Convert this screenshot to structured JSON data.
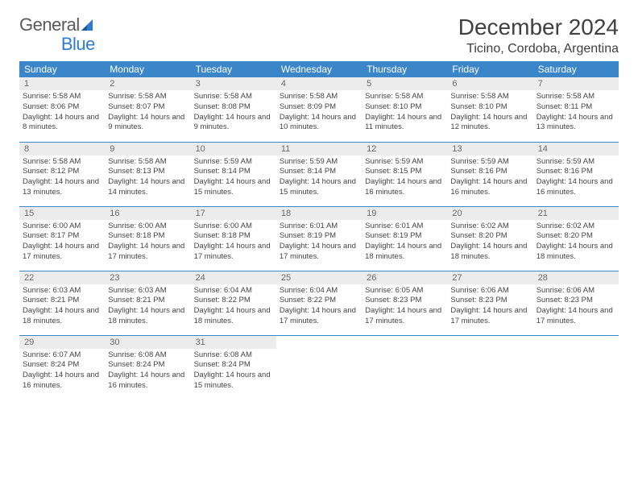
{
  "logo": {
    "text1": "General",
    "text2": "Blue"
  },
  "title": "December 2024",
  "subtitle": "Ticino, Cordoba, Argentina",
  "colors": {
    "header_bg": "#3b86c8",
    "header_text": "#ffffff",
    "daynum_bg": "#ececec",
    "daynum_text": "#6a6a6a",
    "body_text": "#444444",
    "divider": "#3b86c8",
    "title_text": "#404040",
    "logo_gray": "#5a5a5a",
    "logo_blue": "#2d7cd1"
  },
  "weekdays": [
    "Sunday",
    "Monday",
    "Tuesday",
    "Wednesday",
    "Thursday",
    "Friday",
    "Saturday"
  ],
  "days": [
    {
      "n": 1,
      "sr": "5:58 AM",
      "ss": "8:06 PM",
      "dl": "14 hours and 8 minutes."
    },
    {
      "n": 2,
      "sr": "5:58 AM",
      "ss": "8:07 PM",
      "dl": "14 hours and 9 minutes."
    },
    {
      "n": 3,
      "sr": "5:58 AM",
      "ss": "8:08 PM",
      "dl": "14 hours and 9 minutes."
    },
    {
      "n": 4,
      "sr": "5:58 AM",
      "ss": "8:09 PM",
      "dl": "14 hours and 10 minutes."
    },
    {
      "n": 5,
      "sr": "5:58 AM",
      "ss": "8:10 PM",
      "dl": "14 hours and 11 minutes."
    },
    {
      "n": 6,
      "sr": "5:58 AM",
      "ss": "8:10 PM",
      "dl": "14 hours and 12 minutes."
    },
    {
      "n": 7,
      "sr": "5:58 AM",
      "ss": "8:11 PM",
      "dl": "14 hours and 13 minutes."
    },
    {
      "n": 8,
      "sr": "5:58 AM",
      "ss": "8:12 PM",
      "dl": "14 hours and 13 minutes."
    },
    {
      "n": 9,
      "sr": "5:58 AM",
      "ss": "8:13 PM",
      "dl": "14 hours and 14 minutes."
    },
    {
      "n": 10,
      "sr": "5:59 AM",
      "ss": "8:14 PM",
      "dl": "14 hours and 15 minutes."
    },
    {
      "n": 11,
      "sr": "5:59 AM",
      "ss": "8:14 PM",
      "dl": "14 hours and 15 minutes."
    },
    {
      "n": 12,
      "sr": "5:59 AM",
      "ss": "8:15 PM",
      "dl": "14 hours and 16 minutes."
    },
    {
      "n": 13,
      "sr": "5:59 AM",
      "ss": "8:16 PM",
      "dl": "14 hours and 16 minutes."
    },
    {
      "n": 14,
      "sr": "5:59 AM",
      "ss": "8:16 PM",
      "dl": "14 hours and 16 minutes."
    },
    {
      "n": 15,
      "sr": "6:00 AM",
      "ss": "8:17 PM",
      "dl": "14 hours and 17 minutes."
    },
    {
      "n": 16,
      "sr": "6:00 AM",
      "ss": "8:18 PM",
      "dl": "14 hours and 17 minutes."
    },
    {
      "n": 17,
      "sr": "6:00 AM",
      "ss": "8:18 PM",
      "dl": "14 hours and 17 minutes."
    },
    {
      "n": 18,
      "sr": "6:01 AM",
      "ss": "8:19 PM",
      "dl": "14 hours and 17 minutes."
    },
    {
      "n": 19,
      "sr": "6:01 AM",
      "ss": "8:19 PM",
      "dl": "14 hours and 18 minutes."
    },
    {
      "n": 20,
      "sr": "6:02 AM",
      "ss": "8:20 PM",
      "dl": "14 hours and 18 minutes."
    },
    {
      "n": 21,
      "sr": "6:02 AM",
      "ss": "8:20 PM",
      "dl": "14 hours and 18 minutes."
    },
    {
      "n": 22,
      "sr": "6:03 AM",
      "ss": "8:21 PM",
      "dl": "14 hours and 18 minutes."
    },
    {
      "n": 23,
      "sr": "6:03 AM",
      "ss": "8:21 PM",
      "dl": "14 hours and 18 minutes."
    },
    {
      "n": 24,
      "sr": "6:04 AM",
      "ss": "8:22 PM",
      "dl": "14 hours and 18 minutes."
    },
    {
      "n": 25,
      "sr": "6:04 AM",
      "ss": "8:22 PM",
      "dl": "14 hours and 17 minutes."
    },
    {
      "n": 26,
      "sr": "6:05 AM",
      "ss": "8:23 PM",
      "dl": "14 hours and 17 minutes."
    },
    {
      "n": 27,
      "sr": "6:06 AM",
      "ss": "8:23 PM",
      "dl": "14 hours and 17 minutes."
    },
    {
      "n": 28,
      "sr": "6:06 AM",
      "ss": "8:23 PM",
      "dl": "14 hours and 17 minutes."
    },
    {
      "n": 29,
      "sr": "6:07 AM",
      "ss": "8:24 PM",
      "dl": "14 hours and 16 minutes."
    },
    {
      "n": 30,
      "sr": "6:08 AM",
      "ss": "8:24 PM",
      "dl": "14 hours and 16 minutes."
    },
    {
      "n": 31,
      "sr": "6:08 AM",
      "ss": "8:24 PM",
      "dl": "14 hours and 15 minutes."
    }
  ],
  "labels": {
    "sunrise": "Sunrise:",
    "sunset": "Sunset:",
    "daylight": "Daylight:"
  }
}
